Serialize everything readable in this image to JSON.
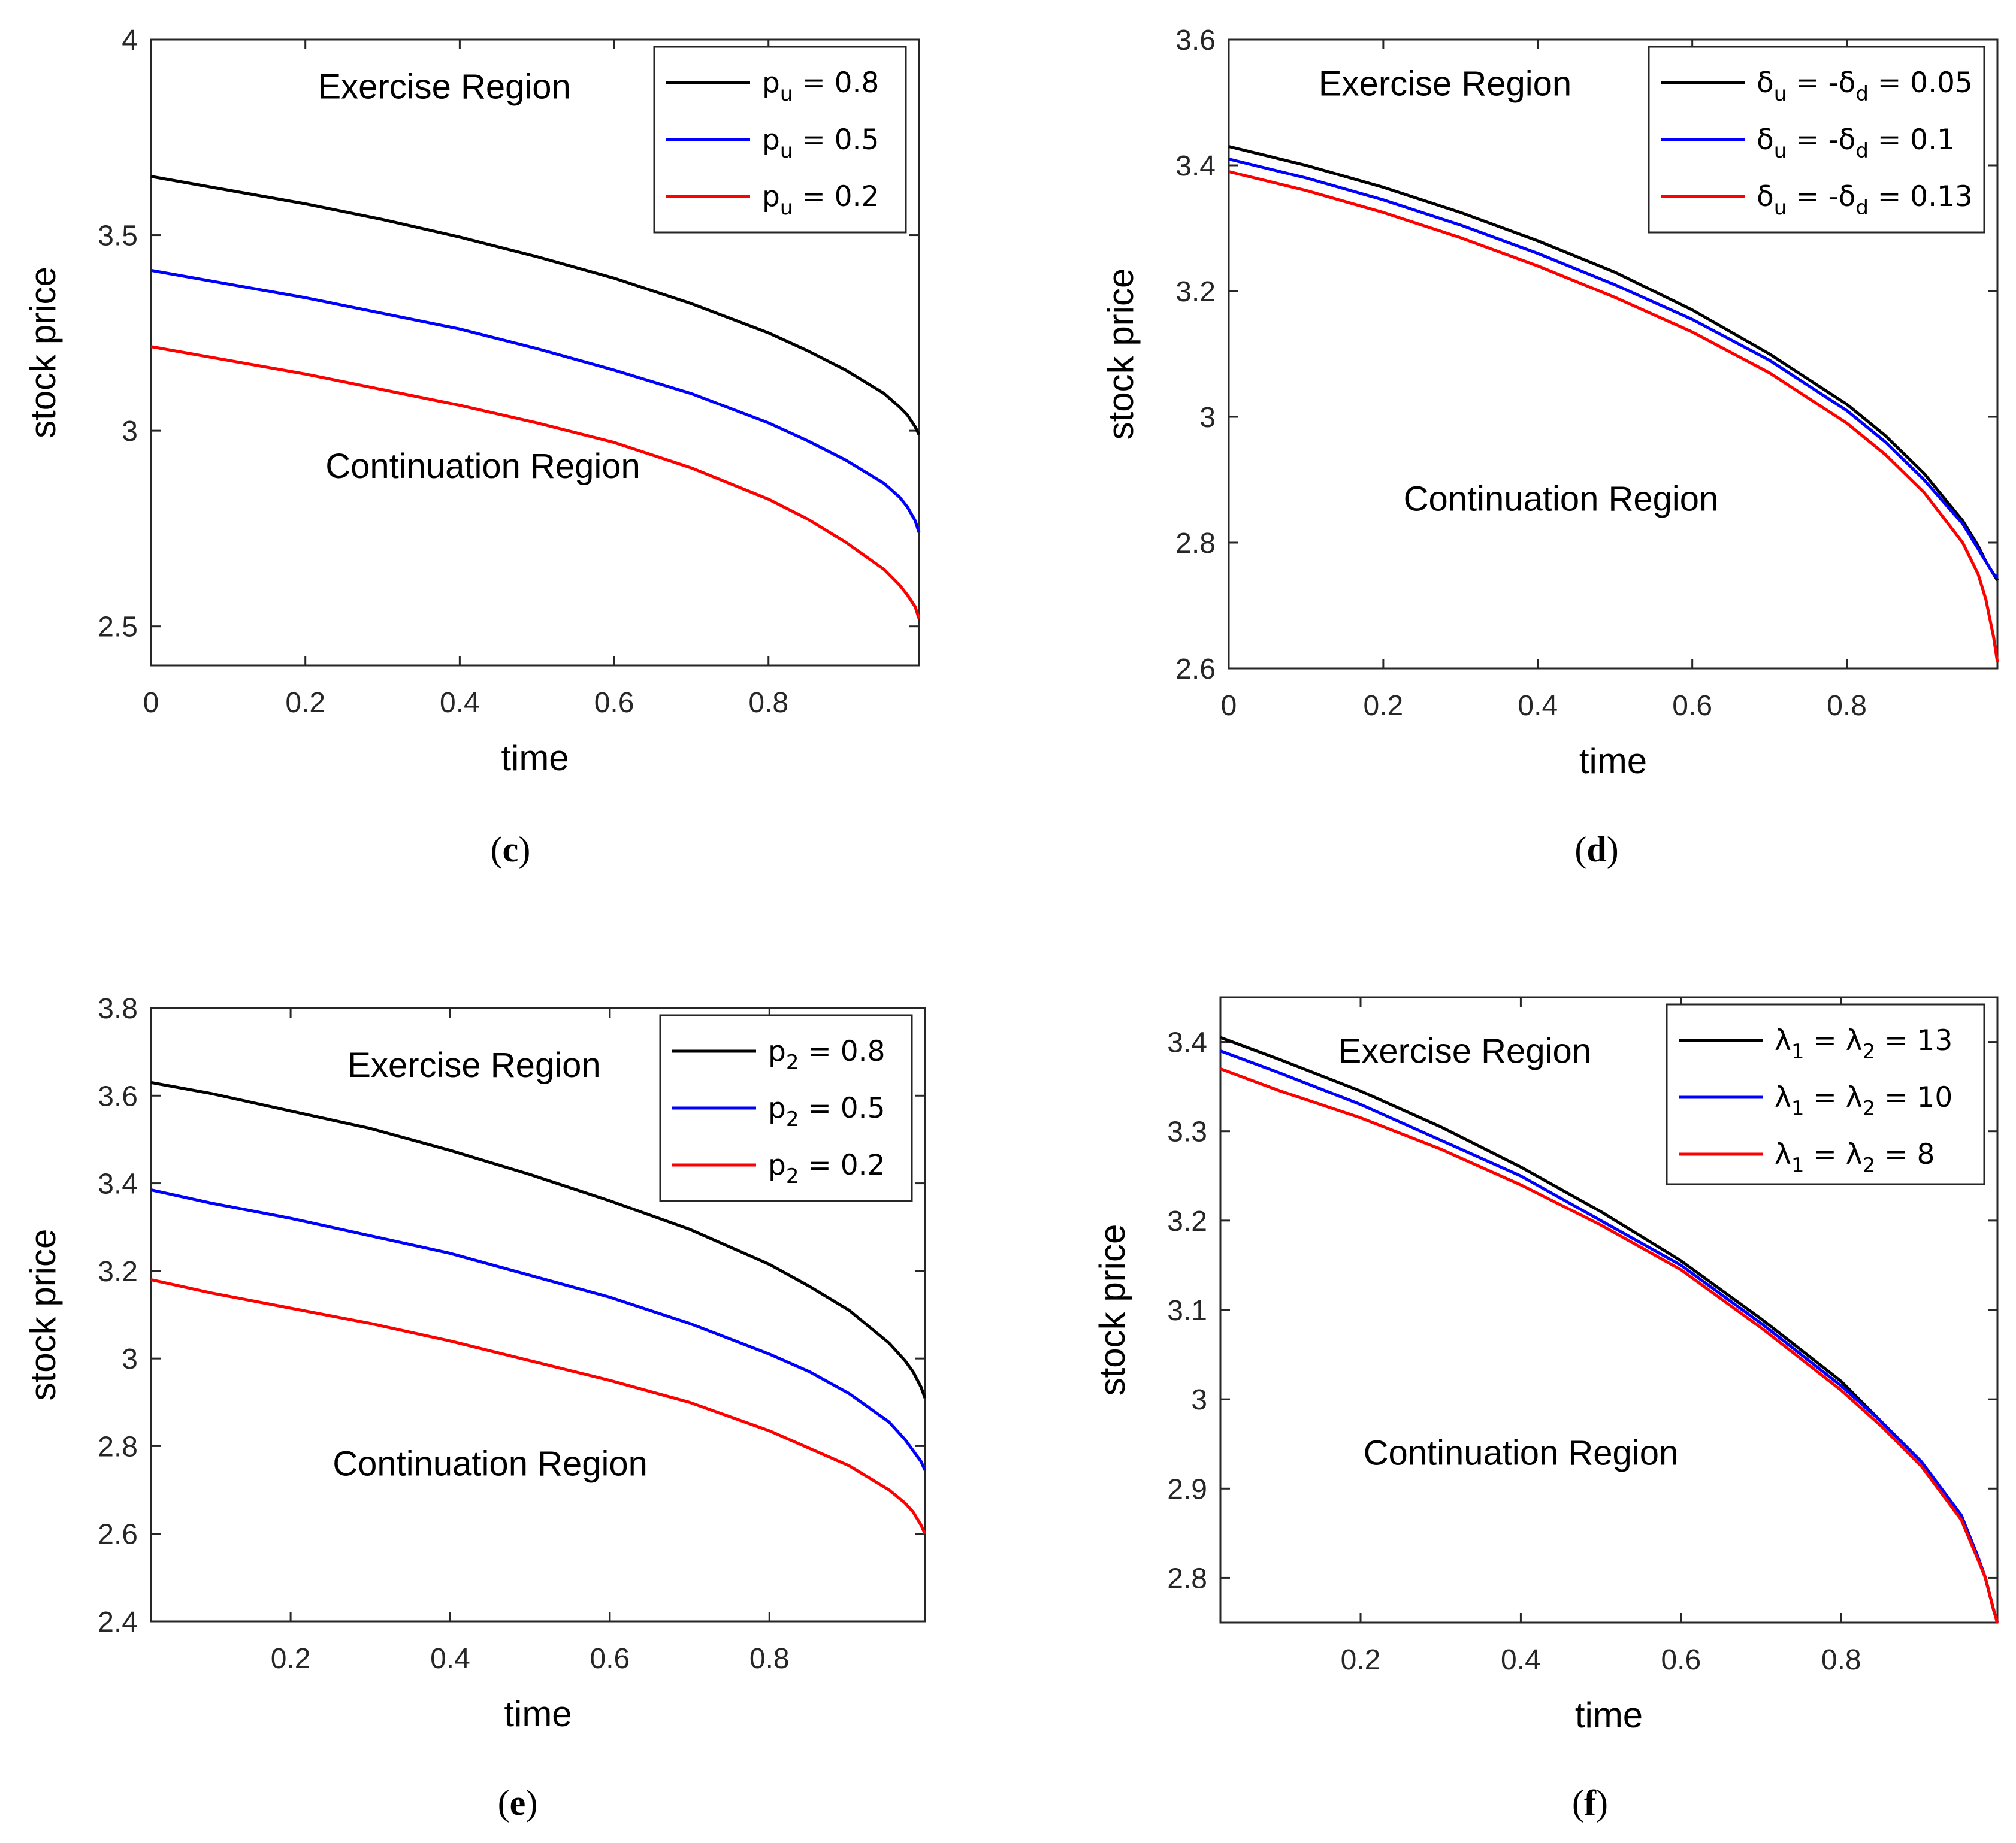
{
  "chart_data": [
    {
      "id": "c",
      "type": "line",
      "caption": {
        "open": "(",
        "letter": "c",
        "close": ")"
      },
      "xlabel": "time",
      "ylabel": "stock price",
      "xlim": [
        0,
        0.995
      ],
      "ylim": [
        2.4,
        4.0
      ],
      "xticks": [
        0,
        0.2,
        0.4,
        0.6,
        0.8
      ],
      "xtick_labels": [
        "0",
        "0.2",
        "0.4",
        "0.6",
        "0.8"
      ],
      "yticks": [
        2.5,
        3.0,
        3.5,
        4.0
      ],
      "ytick_labels": [
        "2.5",
        "3",
        "3.5",
        "4"
      ],
      "annotations": [
        {
          "text": "Exercise Region",
          "x": 0.38,
          "y": 3.88
        },
        {
          "text": "Continuation Region",
          "x": 0.43,
          "y": 2.91
        }
      ],
      "legend_location": "top-right",
      "x": [
        0,
        0.1,
        0.2,
        0.3,
        0.4,
        0.5,
        0.6,
        0.7,
        0.8,
        0.85,
        0.9,
        0.95,
        0.97,
        0.98,
        0.99,
        0.995
      ],
      "series": [
        {
          "name": "p_u = 0.8",
          "legend": {
            "symbol": "p",
            "sub": "u",
            "rest": " = 0.8"
          },
          "color": "#000000",
          "values": [
            3.65,
            3.615,
            3.58,
            3.54,
            3.495,
            3.445,
            3.39,
            3.325,
            3.25,
            3.205,
            3.155,
            3.095,
            3.06,
            3.04,
            3.01,
            2.99
          ]
        },
        {
          "name": "p_u = 0.5",
          "legend": {
            "symbol": "p",
            "sub": "u",
            "rest": " = 0.5"
          },
          "color": "#0000ff",
          "values": [
            3.41,
            3.375,
            3.34,
            3.3,
            3.26,
            3.21,
            3.155,
            3.095,
            3.02,
            2.975,
            2.925,
            2.865,
            2.83,
            2.805,
            2.77,
            2.74
          ]
        },
        {
          "name": "p_u = 0.2",
          "legend": {
            "symbol": "p",
            "sub": "u",
            "rest": " = 0.2"
          },
          "color": "#ff0000",
          "values": [
            3.215,
            3.18,
            3.145,
            3.105,
            3.065,
            3.02,
            2.97,
            2.905,
            2.825,
            2.775,
            2.715,
            2.645,
            2.605,
            2.58,
            2.55,
            2.52
          ]
        }
      ]
    },
    {
      "id": "d",
      "type": "line",
      "caption": {
        "open": "(",
        "letter": "d",
        "close": ")"
      },
      "xlabel": "time",
      "ylabel": "stock price",
      "xlim": [
        0,
        0.995
      ],
      "ylim": [
        2.6,
        3.6
      ],
      "xticks": [
        0,
        0.2,
        0.4,
        0.6,
        0.8
      ],
      "xtick_labels": [
        "0",
        "0.2",
        "0.4",
        "0.6",
        "0.8"
      ],
      "yticks": [
        2.6,
        2.8,
        3.0,
        3.2,
        3.4,
        3.6
      ],
      "ytick_labels": [
        "2.6",
        "2.8",
        "3",
        "3.2",
        "3.4",
        "3.6"
      ],
      "annotations": [
        {
          "text": "Exercise Region",
          "x": 0.28,
          "y": 3.53
        },
        {
          "text": "Continuation Region",
          "x": 0.43,
          "y": 2.87
        }
      ],
      "legend_location": "top-right",
      "x": [
        0,
        0.1,
        0.2,
        0.3,
        0.4,
        0.5,
        0.6,
        0.7,
        0.8,
        0.85,
        0.9,
        0.95,
        0.97,
        0.98,
        0.99,
        0.995
      ],
      "series": [
        {
          "name": "δu = -δd = 0.05",
          "legend": {
            "symbol": "δ",
            "sub": "u",
            "mid": " = -",
            "symbol2": "δ",
            "sub2": "d",
            "rest": " = 0.05"
          },
          "color": "#000000",
          "values": [
            3.43,
            3.4,
            3.365,
            3.325,
            3.28,
            3.23,
            3.17,
            3.1,
            3.02,
            2.97,
            2.91,
            2.835,
            2.795,
            2.77,
            2.75,
            2.74
          ]
        },
        {
          "name": "δu = -δd = 0.1",
          "legend": {
            "symbol": "δ",
            "sub": "u",
            "mid": " = -",
            "symbol2": "δ",
            "sub2": "d",
            "rest": " = 0.1"
          },
          "color": "#0000ff",
          "values": [
            3.41,
            3.38,
            3.345,
            3.305,
            3.26,
            3.21,
            3.155,
            3.09,
            3.01,
            2.96,
            2.9,
            2.83,
            2.79,
            2.77,
            2.75,
            2.745
          ]
        },
        {
          "name": "δu = -δd = 0.13",
          "legend": {
            "symbol": "δ",
            "sub": "u",
            "mid": " = -",
            "symbol2": "δ",
            "sub2": "d",
            "rest": " = 0.13"
          },
          "color": "#ff0000",
          "values": [
            3.39,
            3.36,
            3.325,
            3.285,
            3.24,
            3.19,
            3.135,
            3.07,
            2.99,
            2.94,
            2.88,
            2.8,
            2.75,
            2.71,
            2.65,
            2.61
          ]
        }
      ]
    },
    {
      "id": "e",
      "type": "line",
      "caption": {
        "open": "(",
        "letter": "e",
        "close": ")"
      },
      "xlabel": "time",
      "ylabel": "stock price",
      "xlim": [
        0.025,
        0.995
      ],
      "ylim": [
        2.4,
        3.8
      ],
      "xticks": [
        0.2,
        0.4,
        0.6,
        0.8
      ],
      "xtick_labels": [
        "0.2",
        "0.4",
        "0.6",
        "0.8"
      ],
      "yticks": [
        2.4,
        2.6,
        2.8,
        3.0,
        3.2,
        3.4,
        3.6,
        3.8
      ],
      "ytick_labels": [
        "2.4",
        "2.6",
        "2.8",
        "3",
        "3.2",
        "3.4",
        "3.6",
        "3.8"
      ],
      "annotations": [
        {
          "text": "Exercise Region",
          "x": 0.43,
          "y": 3.67
        },
        {
          "text": "Continuation Region",
          "x": 0.45,
          "y": 2.76
        }
      ],
      "legend_location": "top-right",
      "x": [
        0.025,
        0.1,
        0.2,
        0.3,
        0.4,
        0.5,
        0.6,
        0.7,
        0.8,
        0.85,
        0.9,
        0.95,
        0.97,
        0.98,
        0.99,
        0.995
      ],
      "series": [
        {
          "name": "p_2 = 0.8",
          "legend": {
            "symbol": "p",
            "sub": "2",
            "rest": " = 0.8"
          },
          "color": "#000000",
          "values": [
            3.63,
            3.605,
            3.565,
            3.525,
            3.475,
            3.42,
            3.36,
            3.295,
            3.215,
            3.165,
            3.11,
            3.035,
            2.995,
            2.97,
            2.935,
            2.91
          ]
        },
        {
          "name": "p_2 = 0.5",
          "legend": {
            "symbol": "p",
            "sub": "2",
            "rest": " = 0.5"
          },
          "color": "#0000ff",
          "values": [
            3.385,
            3.355,
            3.32,
            3.28,
            3.24,
            3.19,
            3.14,
            3.08,
            3.01,
            2.97,
            2.92,
            2.855,
            2.815,
            2.79,
            2.765,
            2.745
          ]
        },
        {
          "name": "p_2 = 0.2",
          "legend": {
            "symbol": "p",
            "sub": "2",
            "rest": " = 0.2"
          },
          "color": "#ff0000",
          "values": [
            3.18,
            3.15,
            3.115,
            3.08,
            3.04,
            2.995,
            2.95,
            2.9,
            2.835,
            2.795,
            2.755,
            2.7,
            2.67,
            2.65,
            2.62,
            2.6
          ]
        }
      ]
    },
    {
      "id": "f",
      "type": "line",
      "caption": {
        "open": "(",
        "letter": "f",
        "close": ")"
      },
      "xlabel": "time",
      "ylabel": "stock price",
      "xlim": [
        0.025,
        0.995
      ],
      "ylim": [
        2.75,
        3.45
      ],
      "xticks": [
        0.2,
        0.4,
        0.6,
        0.8
      ],
      "xtick_labels": [
        "0.2",
        "0.4",
        "0.6",
        "0.8"
      ],
      "yticks": [
        2.8,
        2.9,
        3.0,
        3.1,
        3.2,
        3.3,
        3.4
      ],
      "ytick_labels": [
        "2.8",
        "2.9",
        "3",
        "3.1",
        "3.2",
        "3.3",
        "3.4"
      ],
      "annotations": [
        {
          "text": "Exercise Region",
          "x": 0.33,
          "y": 3.39
        },
        {
          "text": "Continuation Region",
          "x": 0.4,
          "y": 2.94
        }
      ],
      "legend_location": "top-right",
      "x": [
        0.025,
        0.1,
        0.2,
        0.3,
        0.4,
        0.5,
        0.6,
        0.7,
        0.8,
        0.85,
        0.9,
        0.95,
        0.97,
        0.98,
        0.99,
        0.995
      ],
      "series": [
        {
          "name": "λ1 = λ2 = 13",
          "legend": {
            "symbol": "λ",
            "sub": "1",
            "mid": " = ",
            "symbol2": "λ",
            "sub2": "2",
            "rest": " = 13"
          },
          "color": "#000000",
          "values": [
            3.405,
            3.38,
            3.345,
            3.305,
            3.26,
            3.21,
            3.155,
            3.09,
            3.02,
            2.975,
            2.93,
            2.87,
            2.825,
            2.8,
            2.765,
            2.75
          ]
        },
        {
          "name": "λ1 = λ2 = 10",
          "legend": {
            "symbol": "λ",
            "sub": "1",
            "mid": " = ",
            "symbol2": "λ",
            "sub2": "2",
            "rest": " = 10"
          },
          "color": "#0000ff",
          "values": [
            3.39,
            3.365,
            3.33,
            3.29,
            3.25,
            3.2,
            3.15,
            3.085,
            3.015,
            2.975,
            2.93,
            2.87,
            2.825,
            2.8,
            2.765,
            2.75
          ]
        },
        {
          "name": "λ1 = λ2 = 8",
          "legend": {
            "symbol": "λ",
            "sub": "1",
            "mid": " = ",
            "symbol2": "λ",
            "sub2": "2",
            "rest": " = 8"
          },
          "color": "#ff0000",
          "values": [
            3.37,
            3.345,
            3.315,
            3.28,
            3.24,
            3.195,
            3.145,
            3.08,
            3.01,
            2.97,
            2.925,
            2.865,
            2.822,
            2.8,
            2.765,
            2.75
          ]
        }
      ]
    }
  ]
}
